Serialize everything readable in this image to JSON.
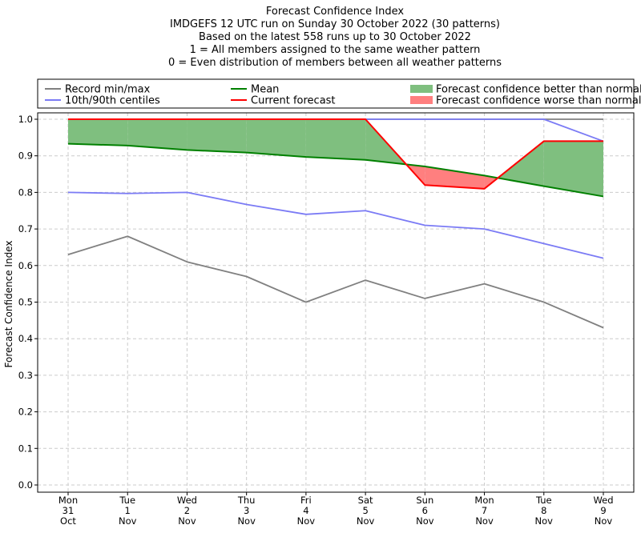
{
  "chart_data": {
    "type": "line",
    "title_lines": [
      "Forecast Confidence Index",
      "IMDGEFS 12 UTC run on Sunday 30 October 2022 (30 patterns)",
      "Based on the latest 558 runs up to 30 October 2022",
      "1 = All members assigned to the same weather pattern",
      "0 = Even distribution of members between all weather patterns"
    ],
    "ylabel": "Forecast Confidence Index",
    "ylim": [
      0,
      1.0
    ],
    "yticks": [
      "0.0",
      "0.1",
      "0.2",
      "0.3",
      "0.4",
      "0.5",
      "0.6",
      "0.7",
      "0.8",
      "0.9",
      "1.0"
    ],
    "categories": [
      [
        "Mon",
        "31",
        "Oct"
      ],
      [
        "Tue",
        "1",
        "Nov"
      ],
      [
        "Wed",
        "2",
        "Nov"
      ],
      [
        "Thu",
        "3",
        "Nov"
      ],
      [
        "Fri",
        "4",
        "Nov"
      ],
      [
        "Sat",
        "5",
        "Nov"
      ],
      [
        "Sun",
        "6",
        "Nov"
      ],
      [
        "Mon",
        "7",
        "Nov"
      ],
      [
        "Tue",
        "8",
        "Nov"
      ],
      [
        "Wed",
        "9",
        "Nov"
      ]
    ],
    "grid": true,
    "legend": {
      "placement": "top",
      "entries": [
        {
          "label": "Record min/max",
          "kind": "line",
          "color": "#808080"
        },
        {
          "label": "10th/90th centiles",
          "kind": "line",
          "color": "#7b7bf5"
        },
        {
          "label": "Mean",
          "kind": "line",
          "color": "#008000"
        },
        {
          "label": "Current forecast",
          "kind": "line",
          "color": "#ff0000"
        },
        {
          "label": "Forecast confidence better than normal",
          "kind": "patch",
          "color": "#7fbf7f"
        },
        {
          "label": "Forecast confidence worse than normal",
          "kind": "patch",
          "color": "#ff7f7f"
        }
      ]
    },
    "series": [
      {
        "name": "Record min/max",
        "role": "record_max",
        "color": "#808080",
        "values": [
          1.0,
          1.0,
          1.0,
          1.0,
          1.0,
          1.0,
          1.0,
          1.0,
          1.0,
          1.0
        ]
      },
      {
        "name": "Record min/max",
        "role": "record_min",
        "color": "#808080",
        "values": [
          0.63,
          0.68,
          0.61,
          0.57,
          0.5,
          0.56,
          0.51,
          0.55,
          0.5,
          0.43
        ]
      },
      {
        "name": "10th/90th centiles",
        "role": "p90",
        "color": "#7b7bf5",
        "values": [
          1.0,
          1.0,
          1.0,
          1.0,
          1.0,
          1.0,
          1.0,
          1.0,
          1.0,
          0.94
        ]
      },
      {
        "name": "10th/90th centiles",
        "role": "p10",
        "color": "#7b7bf5",
        "values": [
          0.8,
          0.797,
          0.8,
          0.767,
          0.74,
          0.75,
          0.71,
          0.7,
          0.66,
          0.62
        ]
      },
      {
        "name": "Mean",
        "role": "mean",
        "color": "#008000",
        "values": [
          0.933,
          0.928,
          0.916,
          0.909,
          0.897,
          0.889,
          0.871,
          0.846,
          0.817,
          0.789
        ]
      },
      {
        "name": "Current forecast",
        "role": "current",
        "color": "#ff0000",
        "values": [
          1.0,
          1.0,
          1.0,
          1.0,
          1.0,
          1.0,
          0.82,
          0.81,
          0.94,
          0.94
        ]
      }
    ],
    "fills": {
      "better_color": "#7fbf7f",
      "worse_color": "#ff7f7f"
    }
  }
}
